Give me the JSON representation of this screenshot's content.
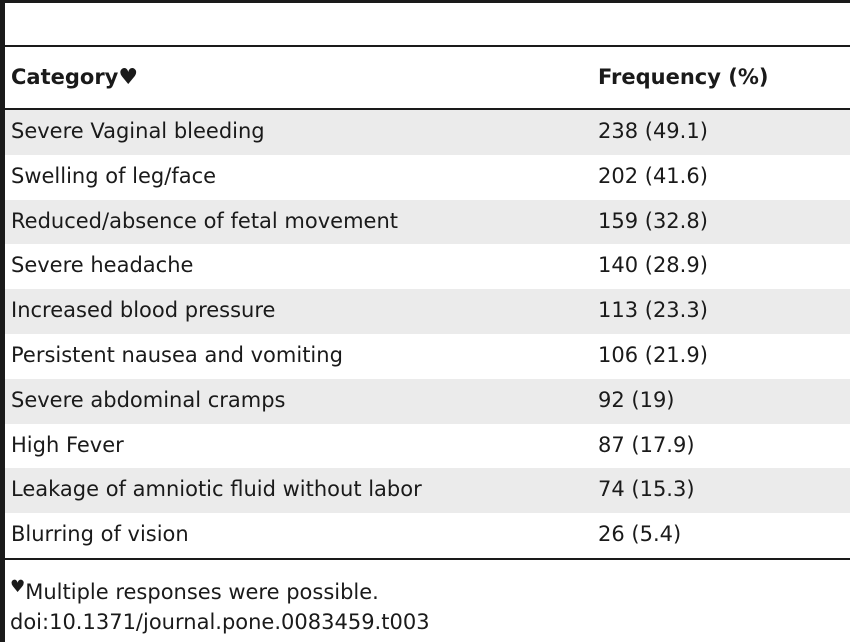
{
  "table": {
    "header": {
      "category": "Category",
      "category_mark": "♥",
      "frequency": "Frequency (%)"
    },
    "rows": [
      {
        "category": "Severe Vaginal bleeding",
        "frequency": "238 (49.1)"
      },
      {
        "category": "Swelling of leg/face",
        "frequency": "202 (41.6)"
      },
      {
        "category": "Reduced/absence of fetal movement",
        "frequency": "159 (32.8)"
      },
      {
        "category": "Severe headache",
        "frequency": "140 (28.9)"
      },
      {
        "category": "Increased blood pressure",
        "frequency": "113 (23.3)"
      },
      {
        "category": "Persistent nausea and vomiting",
        "frequency": "106 (21.9)"
      },
      {
        "category": "Severe abdominal cramps",
        "frequency": "92 (19)"
      },
      {
        "category": "High Fever",
        "frequency": "87 (17.9)"
      },
      {
        "category": "Leakage of amniotic fluid without labor",
        "frequency": "74 (15.3)"
      },
      {
        "category": "Blurring of vision",
        "frequency": "26 (5.4)"
      }
    ]
  },
  "footnote": {
    "mark": "♥",
    "text": "Multiple responses were possible.",
    "doi": "doi:10.1371/journal.pone.0083459.t003"
  },
  "colors": {
    "shaded_row": "#ebebeb",
    "rule": "#1a1a1a"
  }
}
